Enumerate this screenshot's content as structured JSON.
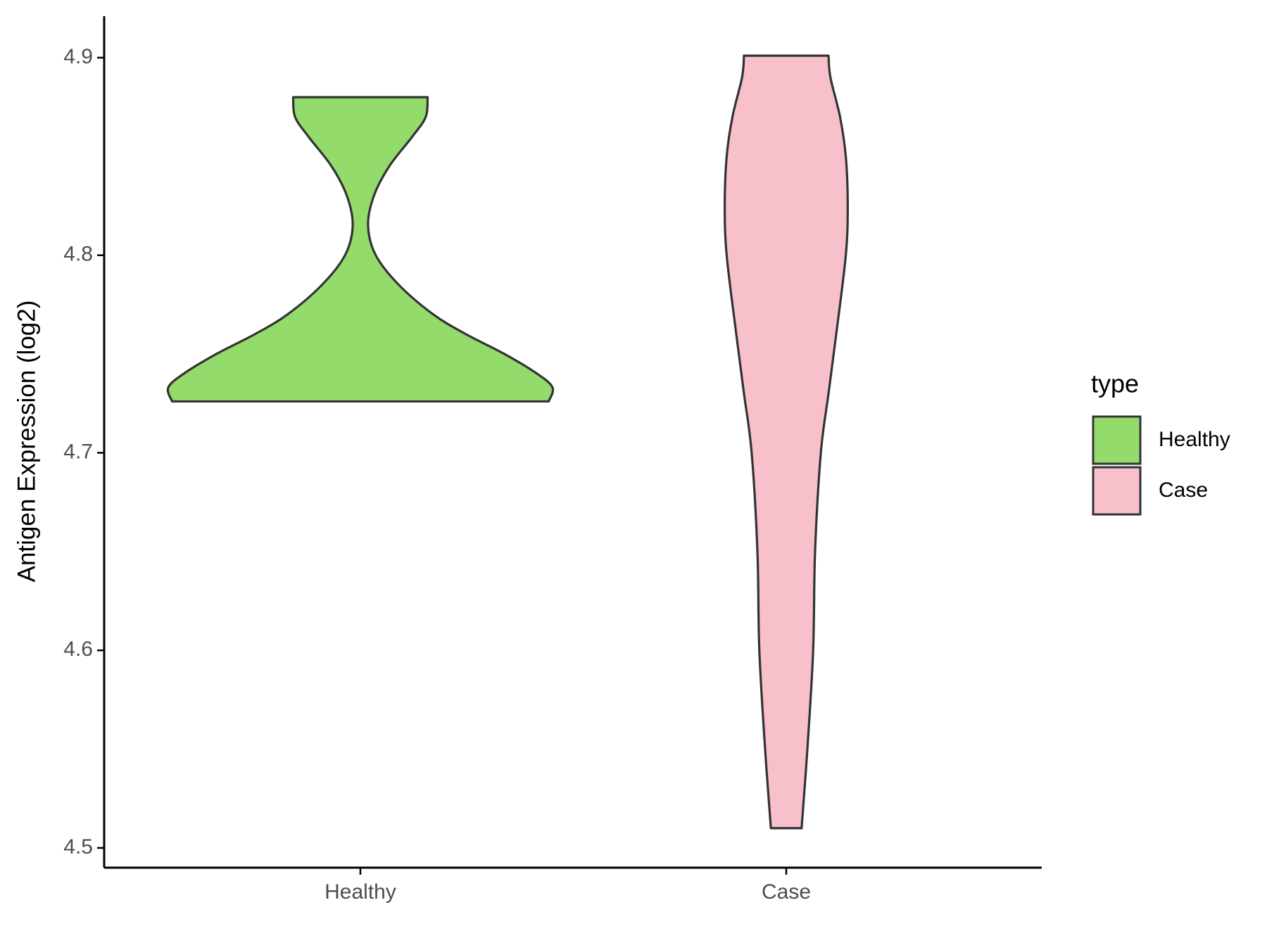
{
  "chart_data": {
    "type": "violin",
    "y_label": "Antigen Expression (log2)",
    "legend_title": "type",
    "categories": [
      "Healthy",
      "Case"
    ],
    "ylim": [
      4.49,
      4.921
    ],
    "yticks": [
      4.5,
      4.6,
      4.7,
      4.8,
      4.9
    ],
    "series": [
      {
        "name": "Healthy",
        "color": "#93db6b",
        "y": [
          4.726,
          4.733,
          4.74,
          4.75,
          4.76,
          4.77,
          4.785,
          4.8,
          4.815,
          4.83,
          4.845,
          4.86,
          4.87,
          4.88
        ],
        "width": [
          0.98,
          1.0,
          0.92,
          0.75,
          0.55,
          0.38,
          0.2,
          0.08,
          0.04,
          0.07,
          0.15,
          0.27,
          0.34,
          0.35
        ]
      },
      {
        "name": "Case",
        "color": "#f7c0cb",
        "y": [
          4.51,
          4.55,
          4.6,
          4.65,
          4.7,
          4.73,
          4.76,
          4.8,
          4.825,
          4.85,
          4.87,
          4.89,
          4.901
        ],
        "width": [
          0.08,
          0.11,
          0.14,
          0.15,
          0.18,
          0.22,
          0.26,
          0.31,
          0.32,
          0.31,
          0.28,
          0.23,
          0.22
        ]
      }
    ]
  }
}
